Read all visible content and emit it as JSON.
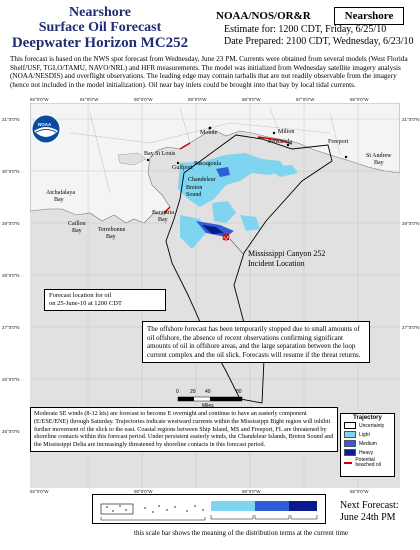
{
  "header": {
    "title_line1": "Nearshore",
    "title_line2": "Surface Oil Forecast",
    "title_line3": "Deepwater Horizon MC252",
    "agency": "NOAA/NOS/OR&R",
    "badge": "Nearshore",
    "estimate_line": "Estimate for: 1200 CDT, Friday, 6/25/10",
    "prepared_line": "Date Prepared: 2100 CDT, Wednesday, 6/23/10"
  },
  "intro_text": "This forecast is based on the NWS spot forecast from Wednesday, June 23 PM. Currents were obtained from several models (West Florida Shelf/USF, TGLO/TAMU, NAVO/NRL) and HFR measurements. The model was initialized from Wednesday satellite imagery analysis (NOAA/NESDIS) and overflight observations. The leading edge may contain tarballs that are not readily observable from the imagery (hence not included in the model initialization). Oil near bay inlets could be brought into that bay by local tidal currents.",
  "map": {
    "lon_ticks": [
      "92°0'0\"W",
      "91°0'0\"W",
      "90°0'0\"W",
      "89°0'0\"W",
      "88°0'0\"W",
      "87°0'0\"W",
      "86°0'0\"W"
    ],
    "lat_ticks": [
      "31°0'0\"N",
      "30°0'0\"N",
      "29°0'0\"N",
      "28°0'0\"N",
      "27°0'0\"N",
      "26°0'0\"N",
      "25°0'0\"N"
    ],
    "places": {
      "mobile": "Mobile",
      "gulfport": "Gulfport",
      "pascagoula": "Pascagoula",
      "bay_st_louis": "Bay St Louis",
      "chandeleur": "Chandeleur",
      "breton": "Breton",
      "sound": "Sound",
      "barataria": "Barataria",
      "bay1": "Bay",
      "terrebonne": "Terrebonne",
      "bay2": "Bay",
      "caillou": "Caillou",
      "bay3": "Bay",
      "atchafalaya": "Atchafalaya",
      "bay4": "Bay",
      "milton": "Milton",
      "pensacola": "Pensacola",
      "freeport": "Freeport",
      "st_andrew": "St Andrew",
      "bay5": "Bay"
    },
    "incident_label_1": "Mississippi Canyon 252",
    "incident_label_2": "Incident Location",
    "forecast_location_1": "Forecast location for oil",
    "forecast_location_2": "on 25-June-10 at 1200 CDT",
    "offshore_note": "The offshore forecast has been temporarily stopped due to small amounts of oil offshore, the absence of recent observations confirming significant amounts of oil in offshore areas, and the large separation between the loop current complex and the oil slick.  Forecasts will resume if the threat returns.",
    "scale_ticks": [
      "0",
      "20",
      "40",
      "80"
    ],
    "scale_unit": "Miles",
    "logo_text": "NOAA"
  },
  "bottom_text": "Moderate SE winds (8-12 kts) are forecast to become E overnight and continue to have an easterly component (E/ESE/ENE) through Saturday. Trajectories indicate westward currents within the Mississippi Bight region will inhibit further movement of the slick to the east. Coastal regions between Ship Island, MS and Freeport, FL are threatened by shoreline contacts within this forecast period. Under persistent easterly winds, the Chandeleur Islands, Breton Sound and the Mississippi Delta are increasingly threatened by shoreline contacts in this forecast period.",
  "legend": {
    "title": "Trajectory",
    "items": [
      {
        "label": "Uncertainty",
        "color": "#ffffff"
      },
      {
        "label": "Light",
        "color": "#7fd4f0"
      },
      {
        "label": "Medium",
        "color": "#2f5fd6"
      },
      {
        "label": "Heavy",
        "color": "#0a1a8c"
      },
      {
        "label": "Potential beached oil",
        "color": "#d40000"
      }
    ]
  },
  "next_forecast_1": "Next Forecast:",
  "next_forecast_2": "June 24th PM",
  "scalebar_caption": "this scale bar shows the meaning of the distribution terms at the current time",
  "colors": {
    "land": "#f3f3f3",
    "water": "#e3e3e3",
    "light_oil": "#7fd4f0",
    "medium_oil": "#2f5fd6",
    "heavy_oil": "#0a1a8c",
    "beached": "#d40000",
    "title_blue": "#1f2d73"
  }
}
